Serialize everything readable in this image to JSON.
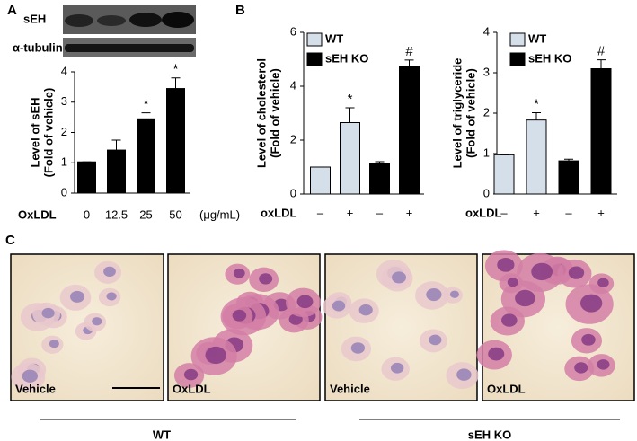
{
  "panel_labels": [
    "A",
    "B",
    "C"
  ],
  "blot": {
    "labels": [
      "sEH",
      "α-tubulin"
    ]
  },
  "chart_data": [
    {
      "type": "bar",
      "categories": [
        "0",
        "12.5",
        "25",
        "50"
      ],
      "x_label": "OxLDL",
      "x_unit": "(μg/mL)",
      "ylabel": [
        "Level of sEH",
        "(Fold of vehicle)"
      ],
      "series": [
        {
          "color": "#000000",
          "values": [
            1.03,
            1.42,
            2.45,
            3.45
          ],
          "errors": [
            0,
            0.33,
            0.2,
            0.35
          ]
        }
      ],
      "annotations": [
        null,
        null,
        "*",
        "*"
      ],
      "ylim": [
        0,
        4
      ],
      "yticks": [
        0,
        1,
        2,
        3,
        4
      ]
    },
    {
      "type": "bar",
      "categories": [
        "–",
        "+",
        "–",
        "+"
      ],
      "x_label": "oxLDL",
      "ylabel": [
        "Level of cholesterol",
        "(Fold of vehicle)"
      ],
      "series": [
        {
          "name": "WT",
          "color": "#d5dfe9",
          "values": [
            1.0,
            2.65,
            null,
            null
          ],
          "errors": [
            0,
            0.55,
            null,
            null
          ]
        },
        {
          "name": "sEH KO",
          "color": "#000000",
          "values": [
            null,
            null,
            1.15,
            4.72
          ],
          "errors": [
            null,
            null,
            0.05,
            0.25
          ]
        }
      ],
      "annotations": [
        null,
        "*",
        null,
        "#"
      ],
      "ylim": [
        0,
        6
      ],
      "yticks": [
        0,
        2,
        4,
        6
      ],
      "legend": "upper left"
    },
    {
      "type": "bar",
      "categories": [
        "–",
        "+",
        "–",
        "+"
      ],
      "x_label": "oxLDL",
      "ylabel": [
        "Level of triglyceride",
        "(Fold of vehicle)"
      ],
      "series": [
        {
          "name": "WT",
          "color": "#d5dfe9",
          "values": [
            0.97,
            1.83,
            null,
            null
          ],
          "errors": [
            0,
            0.18,
            null,
            null
          ]
        },
        {
          "name": "sEH KO",
          "color": "#000000",
          "values": [
            null,
            null,
            0.82,
            3.1
          ],
          "errors": [
            null,
            null,
            0.04,
            0.22
          ]
        }
      ],
      "annotations": [
        null,
        "*",
        null,
        "#"
      ],
      "ylim": [
        0,
        4
      ],
      "yticks": [
        0,
        1,
        2,
        3,
        4
      ],
      "legend": "upper left"
    }
  ],
  "micrographs": {
    "panels": [
      "Vehicle",
      "OxLDL",
      "Vehicle",
      "OxLDL"
    ],
    "groups": [
      "WT",
      "sEH KO"
    ]
  }
}
